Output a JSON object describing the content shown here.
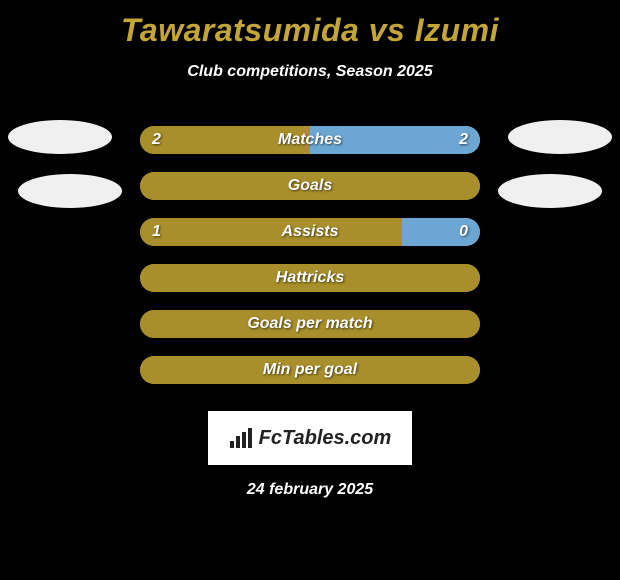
{
  "title": "Tawaratsumida vs Izumi",
  "subtitle": "Club competitions, Season 2025",
  "date": "24 february 2025",
  "logo": "FcTables.com",
  "colors": {
    "player1": "#a88f2b",
    "player2": "#6ca7d4",
    "olive_full": "#a88f2b",
    "text_white": "#ffffff",
    "background": "#000000"
  },
  "stats": [
    {
      "label": "Matches",
      "left_value": "2",
      "right_value": "2",
      "left_pct": 50,
      "right_pct": 50,
      "show_values": true
    },
    {
      "label": "Goals",
      "left_value": "",
      "right_value": "",
      "left_pct": 100,
      "right_pct": 0,
      "show_values": false
    },
    {
      "label": "Assists",
      "left_value": "1",
      "right_value": "0",
      "left_pct": 77,
      "right_pct": 23,
      "show_values": true
    },
    {
      "label": "Hattricks",
      "left_value": "",
      "right_value": "",
      "left_pct": 100,
      "right_pct": 0,
      "show_values": false
    },
    {
      "label": "Goals per match",
      "left_value": "",
      "right_value": "",
      "left_pct": 100,
      "right_pct": 0,
      "show_values": false
    },
    {
      "label": "Min per goal",
      "left_value": "",
      "right_value": "",
      "left_pct": 100,
      "right_pct": 0,
      "show_values": false
    }
  ]
}
